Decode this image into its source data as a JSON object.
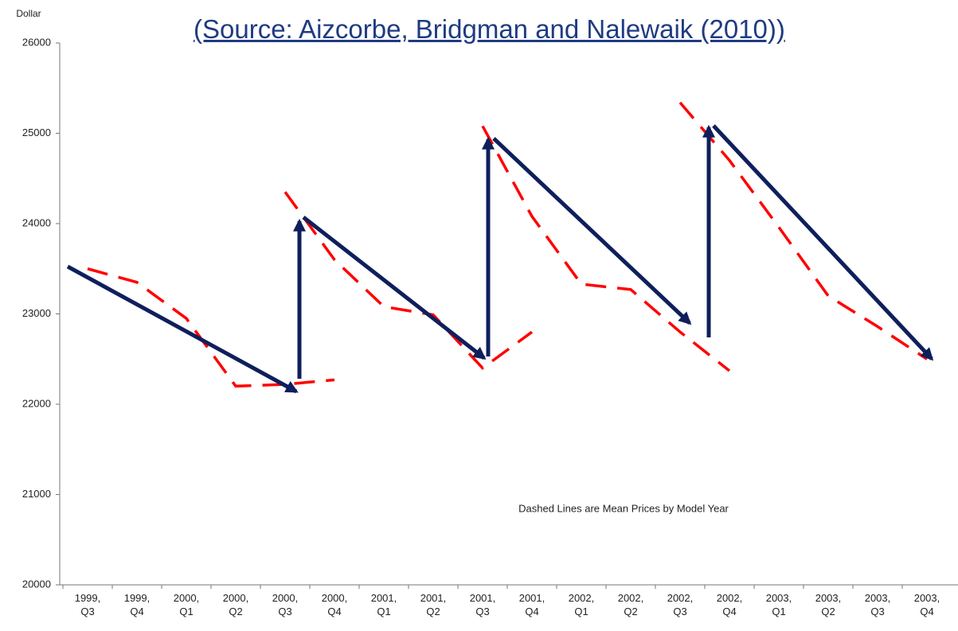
{
  "chart_data": {
    "type": "line",
    "title": "(Source: Aizcorbe, Bridgman and Nalewaik (2010))",
    "y_label": "Dollar",
    "annotation": "Dashed Lines are Mean Prices by Model Year",
    "categories": [
      "1999, Q3",
      "1999, Q4",
      "2000, Q1",
      "2000, Q2",
      "2000, Q3",
      "2000, Q4",
      "2001, Q1",
      "2001, Q2",
      "2001, Q3",
      "2001, Q4",
      "2002, Q1",
      "2002, Q2",
      "2002, Q3",
      "2002, Q4",
      "2003, Q1",
      "2003, Q2",
      "2003, Q3",
      "2003, Q4"
    ],
    "series": [
      {
        "color": "#ff0000",
        "values": [
          23500,
          23350,
          22950,
          22200,
          22220,
          22270,
          null,
          null,
          null,
          null,
          null,
          null,
          null,
          null,
          null,
          null,
          null,
          null
        ]
      },
      {
        "color": "#ff0000",
        "values": [
          null,
          null,
          null,
          null,
          24350,
          23600,
          23080,
          22990,
          22400,
          22800,
          null,
          null,
          null,
          null,
          null,
          null,
          null,
          null
        ]
      },
      {
        "color": "#ff0000",
        "values": [
          null,
          null,
          null,
          null,
          null,
          null,
          null,
          null,
          25080,
          24080,
          23330,
          23270,
          22800,
          22370,
          null,
          null,
          null,
          null
        ]
      },
      {
        "color": "#ff0000",
        "values": [
          null,
          null,
          null,
          null,
          null,
          null,
          null,
          null,
          null,
          null,
          null,
          null,
          25340,
          24700,
          23960,
          23200,
          22860,
          22500
        ]
      }
    ],
    "dashed": true,
    "ylim": [
      20000,
      26000
    ],
    "yticks": [
      20000,
      21000,
      22000,
      23000,
      24000,
      25000,
      26000
    ]
  }
}
